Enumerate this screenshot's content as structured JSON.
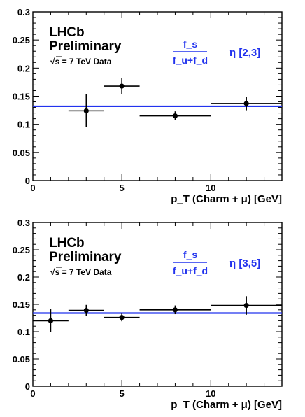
{
  "chart_data": [
    {
      "type": "scatter",
      "experiment_label": "LHCb",
      "status_label": "Preliminary",
      "energy_label": "√s = 7 TeV Data",
      "ratio_numerator": "f_s",
      "ratio_denominator": "f_u+f_d",
      "eta_label": "η [2,3]",
      "xlabel": "p_T (Charm + μ) [GeV]",
      "xlim": [
        0,
        14
      ],
      "ylim": [
        0,
        0.3
      ],
      "x_ticks": [
        0,
        5,
        10
      ],
      "y_ticks": [
        0,
        0.05,
        0.1,
        0.15,
        0.2,
        0.25,
        0.3
      ],
      "y_tick_labels": [
        "0",
        "0.05",
        "0.1",
        "0.15",
        "0.2",
        "0.25",
        "0.3"
      ],
      "fit_value": 0.132,
      "line_color": "#2233ee",
      "points": [
        {
          "x": 3,
          "xlo": 2,
          "xhi": 4,
          "y": 0.124,
          "ylo": 0.095,
          "yhi": 0.154
        },
        {
          "x": 5,
          "xlo": 4,
          "xhi": 6,
          "y": 0.168,
          "ylo": 0.154,
          "yhi": 0.182
        },
        {
          "x": 8,
          "xlo": 6,
          "xhi": 10,
          "y": 0.115,
          "ylo": 0.108,
          "yhi": 0.123
        },
        {
          "x": 12,
          "xlo": 10,
          "xhi": 14,
          "y": 0.137,
          "ylo": 0.125,
          "yhi": 0.149
        }
      ]
    },
    {
      "type": "scatter",
      "experiment_label": "LHCb",
      "status_label": "Preliminary",
      "energy_label": "√s = 7 TeV Data",
      "ratio_numerator": "f_s",
      "ratio_denominator": "f_u+f_d",
      "eta_label": "η [3,5]",
      "xlabel": "p_T (Charm + μ) [GeV]",
      "xlim": [
        0,
        14
      ],
      "ylim": [
        0,
        0.3
      ],
      "x_ticks": [
        0,
        5,
        10
      ],
      "y_ticks": [
        0,
        0.05,
        0.1,
        0.15,
        0.2,
        0.25,
        0.3
      ],
      "y_tick_labels": [
        "0",
        "0.05",
        "0.1",
        "0.15",
        "0.2",
        "0.25",
        "0.3"
      ],
      "fit_value": 0.134,
      "line_color": "#2233ee",
      "points": [
        {
          "x": 1,
          "xlo": 0,
          "xhi": 2,
          "y": 0.12,
          "ylo": 0.099,
          "yhi": 0.141
        },
        {
          "x": 3,
          "xlo": 2,
          "xhi": 4,
          "y": 0.139,
          "ylo": 0.129,
          "yhi": 0.149
        },
        {
          "x": 5,
          "xlo": 4,
          "xhi": 6,
          "y": 0.126,
          "ylo": 0.119,
          "yhi": 0.133
        },
        {
          "x": 8,
          "xlo": 6,
          "xhi": 10,
          "y": 0.14,
          "ylo": 0.132,
          "yhi": 0.148
        },
        {
          "x": 12,
          "xlo": 10,
          "xhi": 14,
          "y": 0.148,
          "ylo": 0.131,
          "yhi": 0.165
        }
      ]
    }
  ]
}
